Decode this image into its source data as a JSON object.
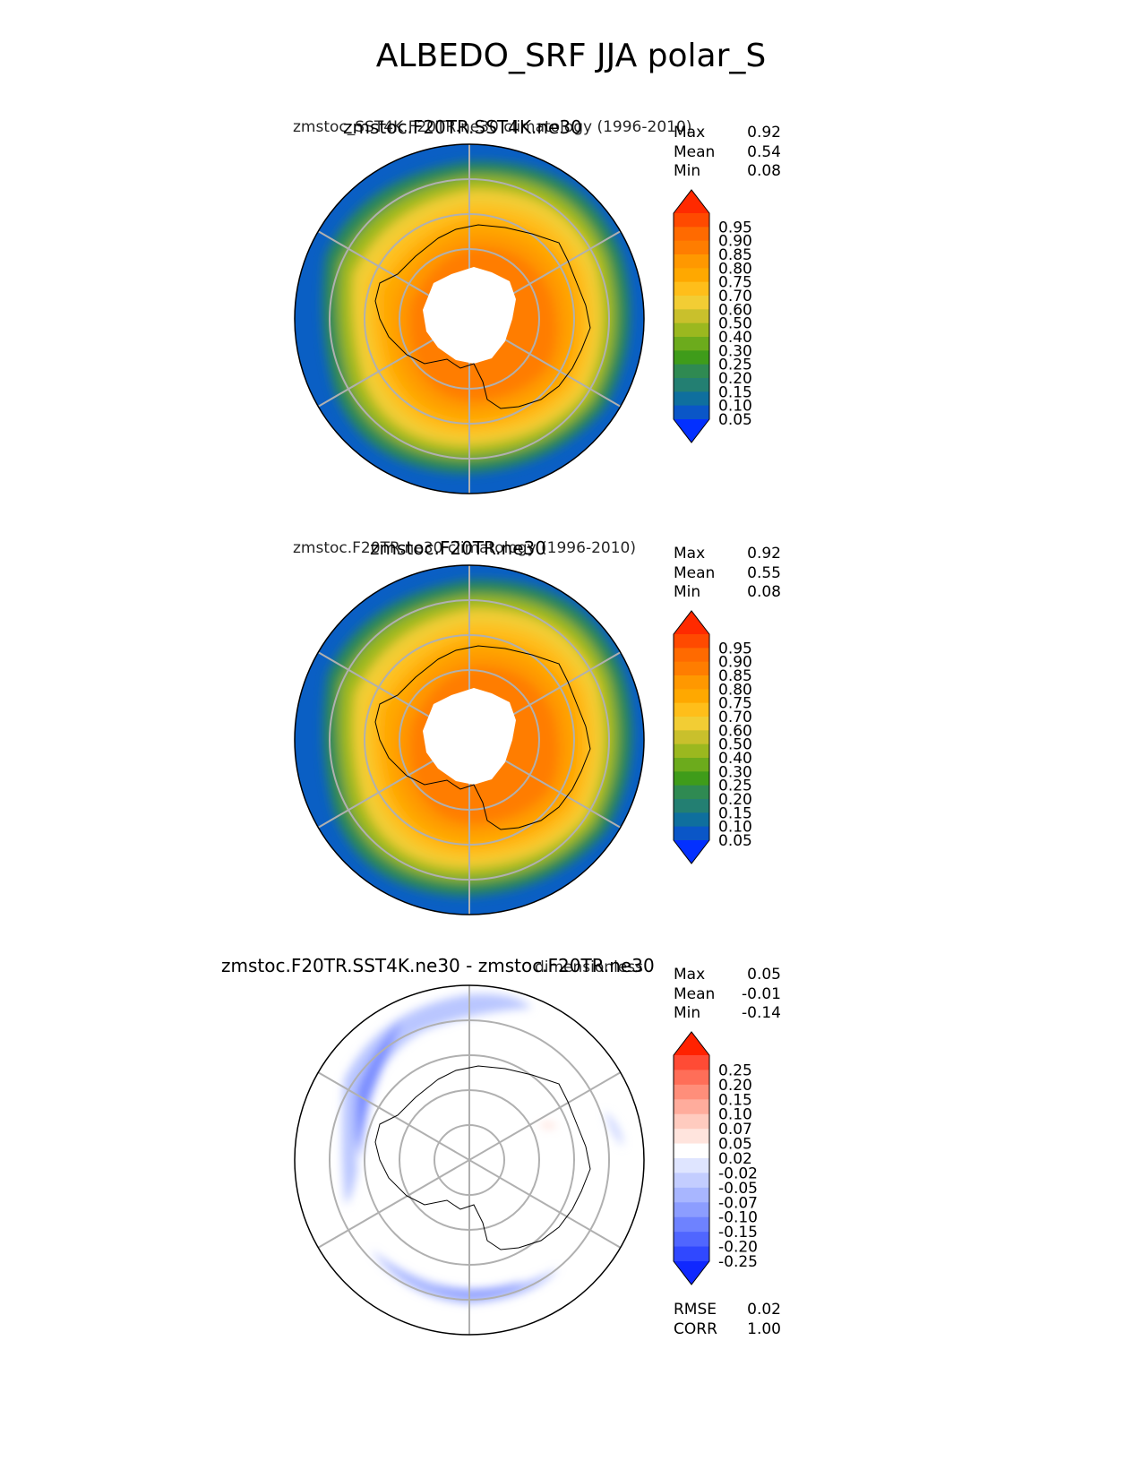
{
  "figure": {
    "title": "ALBEDO_SRF JJA polar_S"
  },
  "chart_data": [
    {
      "type": "heatmap",
      "projection": "south-polar-stereographic",
      "title": "zmstoc.F20TR.SST4K.ne30",
      "subtitle": "zmstoc_SST4K.F20TR.ne30 climatology (1996-2010)",
      "stats": [
        {
          "label": "Max",
          "value": "0.92"
        },
        {
          "label": "Mean",
          "value": "0.54"
        },
        {
          "label": "Min",
          "value": "0.08"
        }
      ],
      "colorbar": {
        "ticks": [
          "0.95",
          "0.90",
          "0.85",
          "0.80",
          "0.75",
          "0.70",
          "0.60",
          "0.50",
          "0.40",
          "0.30",
          "0.25",
          "0.20",
          "0.15",
          "0.10",
          "0.05"
        ],
        "colors": [
          "#ff2a00",
          "#ff4a00",
          "#ff6a00",
          "#ff7d00",
          "#ff9800",
          "#ffa800",
          "#ffbe1a",
          "#f2cd34",
          "#c9c02c",
          "#9bb81f",
          "#6cab1c",
          "#3f9c1a",
          "#2f8a52",
          "#237f72",
          "#0f6f9e",
          "#0a56c7",
          "#0330ff"
        ],
        "extend": "both"
      }
    },
    {
      "type": "heatmap",
      "projection": "south-polar-stereographic",
      "title": "zmstoc.F20TR.ne30",
      "subtitle": "zmstoc.F20TR.ne30 climatology (1996-2010)",
      "stats": [
        {
          "label": "Max",
          "value": "0.92"
        },
        {
          "label": "Mean",
          "value": "0.55"
        },
        {
          "label": "Min",
          "value": "0.08"
        }
      ],
      "colorbar": {
        "ticks": [
          "0.95",
          "0.90",
          "0.85",
          "0.80",
          "0.75",
          "0.70",
          "0.60",
          "0.50",
          "0.40",
          "0.30",
          "0.25",
          "0.20",
          "0.15",
          "0.10",
          "0.05"
        ],
        "colors": [
          "#ff2a00",
          "#ff4a00",
          "#ff6a00",
          "#ff7d00",
          "#ff9800",
          "#ffa800",
          "#ffbe1a",
          "#f2cd34",
          "#c9c02c",
          "#9bb81f",
          "#6cab1c",
          "#3f9c1a",
          "#2f8a52",
          "#237f72",
          "#0f6f9e",
          "#0a56c7",
          "#0330ff"
        ],
        "extend": "both"
      }
    },
    {
      "type": "heatmap",
      "projection": "south-polar-stereographic",
      "title": "zmstoc.F20TR.SST4K.ne30 - zmstoc.F20TR.ne30",
      "subtitle": "dimensionless",
      "stats": [
        {
          "label": "Max",
          "value": "0.05"
        },
        {
          "label": "Mean",
          "value": "-0.01"
        },
        {
          "label": "Min",
          "value": "-0.14"
        }
      ],
      "extra_stats": [
        {
          "label": "RMSE",
          "value": "0.02"
        },
        {
          "label": "CORR",
          "value": "1.00"
        }
      ],
      "colorbar": {
        "ticks": [
          "0.25",
          "0.20",
          "0.15",
          "0.10",
          "0.07",
          "0.05",
          "0.02",
          "-0.02",
          "-0.05",
          "-0.07",
          "-0.10",
          "-0.15",
          "-0.20",
          "-0.25"
        ],
        "colors": [
          "#ff2200",
          "#ff4b35",
          "#ff6e58",
          "#ff8e7a",
          "#ffac9c",
          "#ffcbbf",
          "#ffe4dd",
          "#ffffff",
          "#dfe5ff",
          "#c3cdff",
          "#a8b6ff",
          "#8c9dff",
          "#6e82ff",
          "#5066ff",
          "#3048ff",
          "#1028ff"
        ],
        "extend": "both"
      }
    }
  ]
}
